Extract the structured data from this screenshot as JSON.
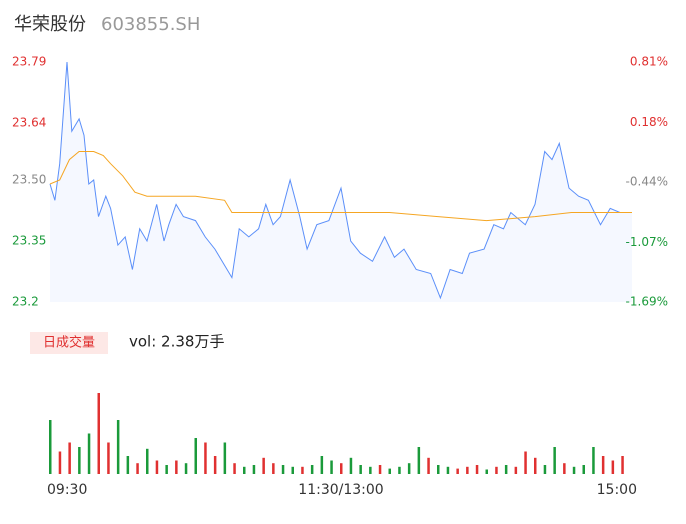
{
  "chart_data": [
    {
      "type": "line",
      "title": "华荣股份",
      "subtitle": "603855.SH",
      "xlim": [
        0,
        240
      ],
      "xticks": [
        {
          "value": 0,
          "label": "09:30"
        },
        {
          "value": 120,
          "label": "11:30/13:00"
        },
        {
          "value": 240,
          "label": "15:00"
        }
      ],
      "ylim": [
        23.2,
        23.79
      ],
      "yticks": [
        23.2,
        23.35,
        {
          "value": 23.5,
          "label": "23.50"
        },
        23.64,
        23.79
      ],
      "ytick_colors": [
        "#1a9a3a",
        "#1a9a3a",
        "#888888",
        "#e03030",
        "#e03030"
      ],
      "y2lim": [
        -1.69,
        0.81
      ],
      "y2ticks": [
        {
          "value": -1.69,
          "label": "-1.69%"
        },
        {
          "value": -1.07,
          "label": "-1.07%"
        },
        {
          "value": -0.44,
          "label": "-0.44%"
        },
        {
          "value": 0.18,
          "label": "0.18%"
        },
        {
          "value": 0.81,
          "label": "0.81%"
        }
      ],
      "series": [
        {
          "name": "price",
          "color": "#5b8ff9",
          "x": [
            0,
            2,
            4,
            7,
            9,
            12,
            14,
            16,
            18,
            20,
            23,
            25,
            28,
            31,
            34,
            37,
            40,
            44,
            47,
            49,
            52,
            55,
            60,
            64,
            68,
            72,
            75,
            78,
            82,
            86,
            89,
            92,
            95,
            99,
            103,
            106,
            110,
            115,
            120,
            124,
            128,
            133,
            138,
            142,
            146,
            151,
            157,
            161,
            165,
            170,
            173,
            179,
            183,
            187,
            190,
            196,
            200,
            204,
            207,
            210,
            214,
            218,
            222,
            227,
            231,
            235,
            240
          ],
          "values": [
            23.49,
            23.45,
            23.54,
            23.79,
            23.62,
            23.65,
            23.61,
            23.49,
            23.5,
            23.41,
            23.46,
            23.43,
            23.34,
            23.36,
            23.28,
            23.38,
            23.35,
            23.44,
            23.35,
            23.39,
            23.44,
            23.41,
            23.4,
            23.36,
            23.33,
            23.29,
            23.26,
            23.38,
            23.36,
            23.38,
            23.44,
            23.39,
            23.41,
            23.5,
            23.41,
            23.33,
            23.39,
            23.4,
            23.48,
            23.35,
            23.32,
            23.3,
            23.36,
            23.31,
            23.33,
            23.28,
            23.27,
            23.21,
            23.28,
            23.27,
            23.32,
            23.33,
            23.39,
            23.38,
            23.42,
            23.39,
            23.44,
            23.57,
            23.55,
            23.59,
            23.48,
            23.46,
            23.45,
            23.39,
            23.43,
            23.42,
            23.42
          ]
        },
        {
          "name": "average",
          "color": "#f5a623",
          "x": [
            0,
            4,
            8,
            12,
            18,
            22,
            25,
            30,
            35,
            40,
            60,
            72,
            75,
            140,
            160,
            180,
            200,
            215,
            240
          ],
          "values": [
            23.49,
            23.5,
            23.55,
            23.57,
            23.57,
            23.56,
            23.54,
            23.51,
            23.47,
            23.46,
            23.46,
            23.45,
            23.42,
            23.42,
            23.41,
            23.4,
            23.41,
            23.42,
            23.42
          ]
        }
      ]
    },
    {
      "type": "bar",
      "title": "日成交量",
      "subtitle": "vol: 2.38万手",
      "xlim": [
        0,
        240
      ],
      "ylim": [
        0,
        100
      ],
      "x": [
        0,
        4,
        8,
        12,
        16,
        20,
        24,
        28,
        32,
        36,
        40,
        44,
        48,
        52,
        56,
        60,
        64,
        68,
        72,
        76,
        80,
        84,
        88,
        92,
        96,
        100,
        104,
        108,
        112,
        116,
        120,
        124,
        128,
        132,
        136,
        140,
        144,
        148,
        152,
        156,
        160,
        164,
        168,
        172,
        176,
        180,
        184,
        188,
        192,
        196,
        200,
        204,
        208,
        212,
        216,
        220,
        224,
        228,
        232,
        236
      ],
      "values": [
        60,
        25,
        35,
        30,
        45,
        90,
        35,
        60,
        20,
        12,
        28,
        15,
        10,
        15,
        12,
        40,
        35,
        20,
        35,
        12,
        8,
        10,
        18,
        12,
        10,
        8,
        8,
        10,
        20,
        15,
        12,
        18,
        10,
        8,
        10,
        6,
        8,
        12,
        30,
        18,
        10,
        8,
        6,
        8,
        10,
        5,
        8,
        10,
        8,
        25,
        18,
        10,
        30,
        12,
        8,
        10,
        30,
        20,
        15,
        20
      ],
      "colors": [
        "#1a9a3a",
        "#e03030",
        "#e03030",
        "#1a9a3a",
        "#1a9a3a",
        "#e03030",
        "#e03030",
        "#1a9a3a",
        "#1a9a3a",
        "#e03030",
        "#1a9a3a",
        "#e03030",
        "#1a9a3a",
        "#e03030",
        "#1a9a3a",
        "#1a9a3a",
        "#e03030",
        "#e03030",
        "#1a9a3a",
        "#e03030",
        "#1a9a3a",
        "#1a9a3a",
        "#e03030",
        "#e03030",
        "#1a9a3a",
        "#1a9a3a",
        "#e03030",
        "#1a9a3a",
        "#1a9a3a",
        "#1a9a3a",
        "#e03030",
        "#1a9a3a",
        "#1a9a3a",
        "#1a9a3a",
        "#e03030",
        "#1a9a3a",
        "#1a9a3a",
        "#1a9a3a",
        "#1a9a3a",
        "#e03030",
        "#1a9a3a",
        "#1a9a3a",
        "#e03030",
        "#e03030",
        "#e03030",
        "#1a9a3a",
        "#e03030",
        "#1a9a3a",
        "#e03030",
        "#e03030",
        "#e03030",
        "#1a9a3a",
        "#1a9a3a",
        "#e03030",
        "#1a9a3a",
        "#1a9a3a",
        "#1a9a3a",
        "#e03030",
        "#e03030",
        "#e03030"
      ]
    }
  ]
}
